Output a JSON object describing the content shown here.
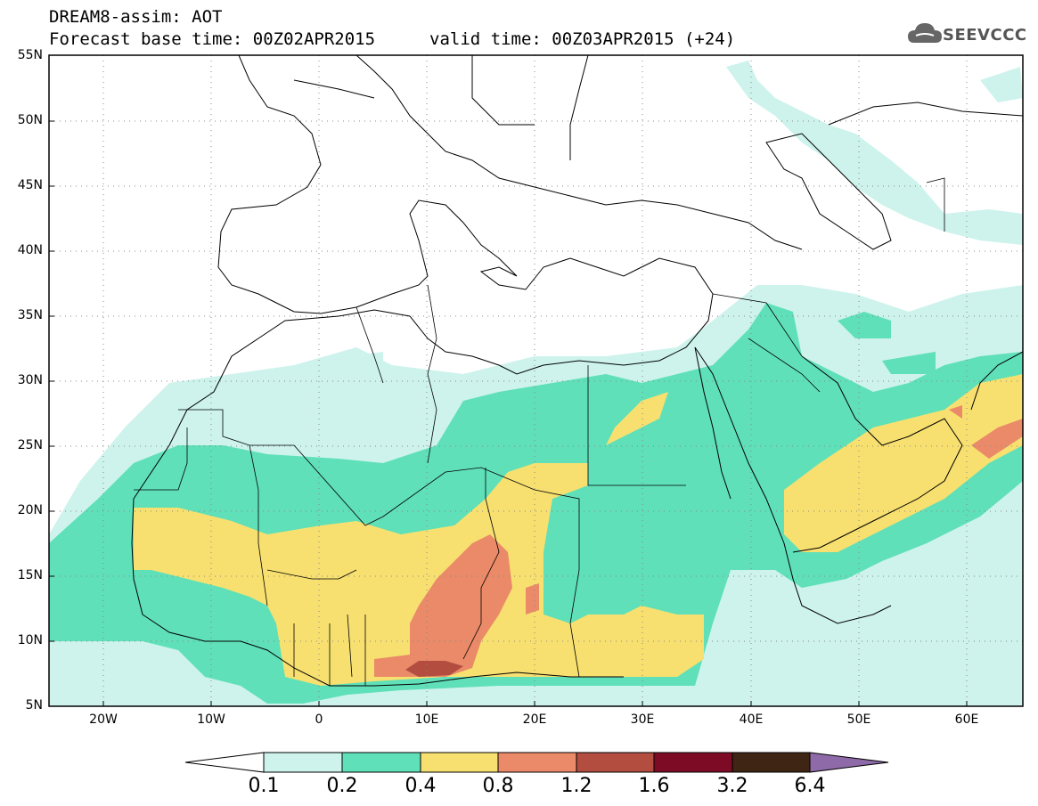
{
  "header": {
    "title_line1": "DREAM8-assim: AOT",
    "title_line2": "Forecast base time: 00Z02APR2015",
    "valid_time": "valid time: 00Z03APR2015 (+24)",
    "logo_text": "SEEVCCC"
  },
  "map": {
    "projection": "lat-lon",
    "lon_range": [
      -25,
      65
    ],
    "lat_range": [
      5,
      55
    ],
    "lat_labels": [
      "55N",
      "50N",
      "45N",
      "40N",
      "35N",
      "30N",
      "25N",
      "20N",
      "15N",
      "10N",
      "5N"
    ],
    "lon_labels": [
      "20W",
      "10W",
      "0",
      "10E",
      "20E",
      "30E",
      "40E",
      "50E",
      "60E"
    ],
    "gridlines": "dotted"
  },
  "colorbar": {
    "labels": [
      "0.1",
      "0.2",
      "0.4",
      "0.8",
      "1.2",
      "1.6",
      "3.2",
      "6.4"
    ],
    "colors": [
      "#ffffff",
      "#cdf3ec",
      "#5fe0b8",
      "#f7e070",
      "#ea8a68",
      "#b24d40",
      "#7e0b25",
      "#3f2514",
      "#8e6aa8"
    ]
  }
}
